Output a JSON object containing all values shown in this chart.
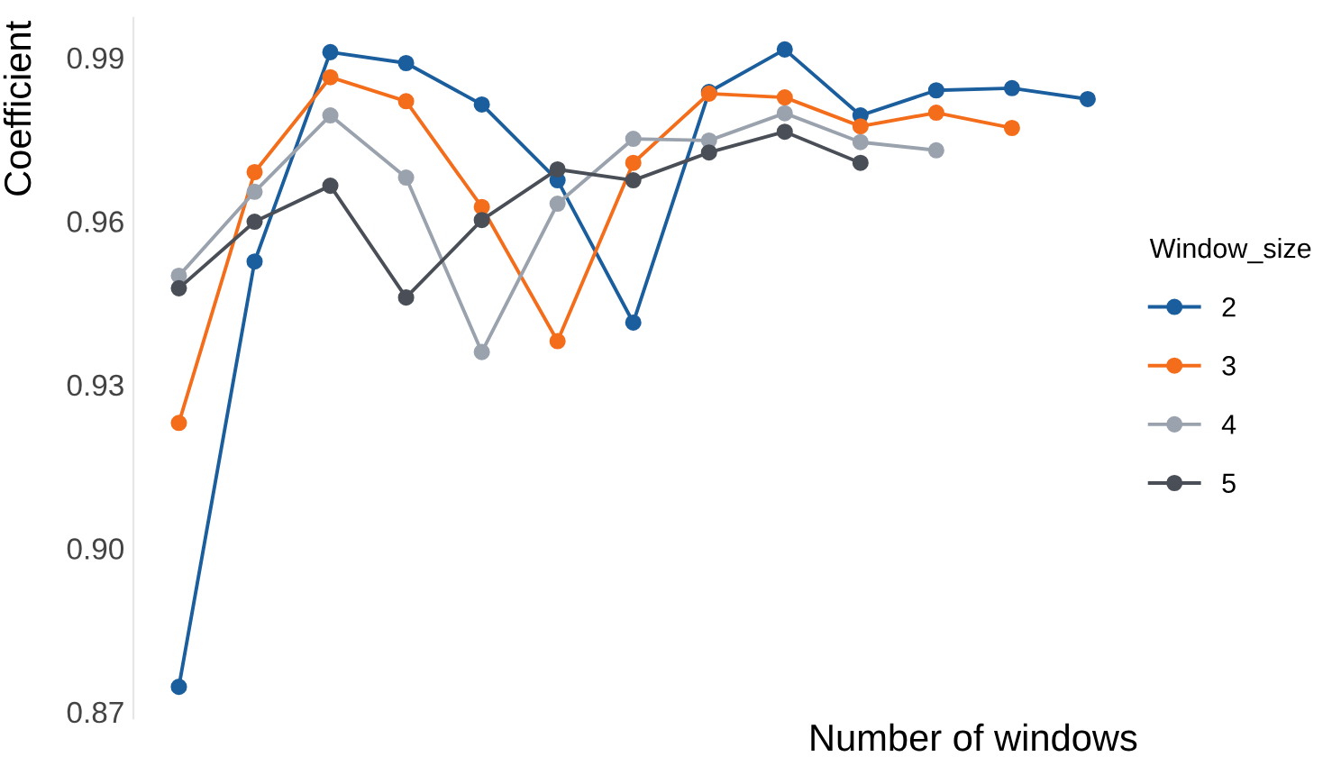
{
  "chart_data": {
    "type": "line",
    "xlabel": "Number of windows",
    "ylabel": "Coefficient",
    "legend_title": "Window_size",
    "categories": [
      null,
      null,
      null,
      null,
      null,
      null,
      null,
      null,
      null,
      null,
      null,
      null,
      null
    ],
    "ylim": [
      0.8688,
      0.9973
    ],
    "yticks": [
      {
        "value": 0.87,
        "label": "0.87"
      },
      {
        "value": 0.9,
        "label": "0.90"
      },
      {
        "value": 0.93,
        "label": "0.93"
      },
      {
        "value": 0.96,
        "label": "0.96"
      },
      {
        "value": 0.99,
        "label": "0.99"
      }
    ],
    "tick_labels": "y",
    "legend": "right",
    "marker": "circle",
    "line_style": "solid",
    "series": [
      {
        "name": "2",
        "color": "#1b5e9e",
        "values": [
          0.8746,
          0.9526,
          0.991,
          0.989,
          0.9814,
          0.9675,
          0.9414,
          0.9837,
          0.9915,
          0.9794,
          0.984,
          0.9844,
          0.9824
        ]
      },
      {
        "name": "3",
        "color": "#f46d1b",
        "values": [
          0.923,
          0.969,
          0.9864,
          0.982,
          0.9626,
          0.938,
          0.9707,
          0.9834,
          0.9827,
          0.9774,
          0.9799,
          0.9771,
          null
        ]
      },
      {
        "name": "4",
        "color": "#9aa2ad",
        "values": [
          0.95,
          0.9654,
          0.9794,
          0.968,
          0.936,
          0.9632,
          0.9751,
          0.9748,
          0.9798,
          0.9745,
          0.973,
          null,
          null
        ]
      },
      {
        "name": "5",
        "color": "#4a4f57",
        "values": [
          0.9477,
          0.9599,
          0.9665,
          0.946,
          0.9602,
          0.9695,
          0.9675,
          0.9726,
          0.9764,
          0.9707,
          null,
          null,
          null
        ]
      }
    ]
  }
}
